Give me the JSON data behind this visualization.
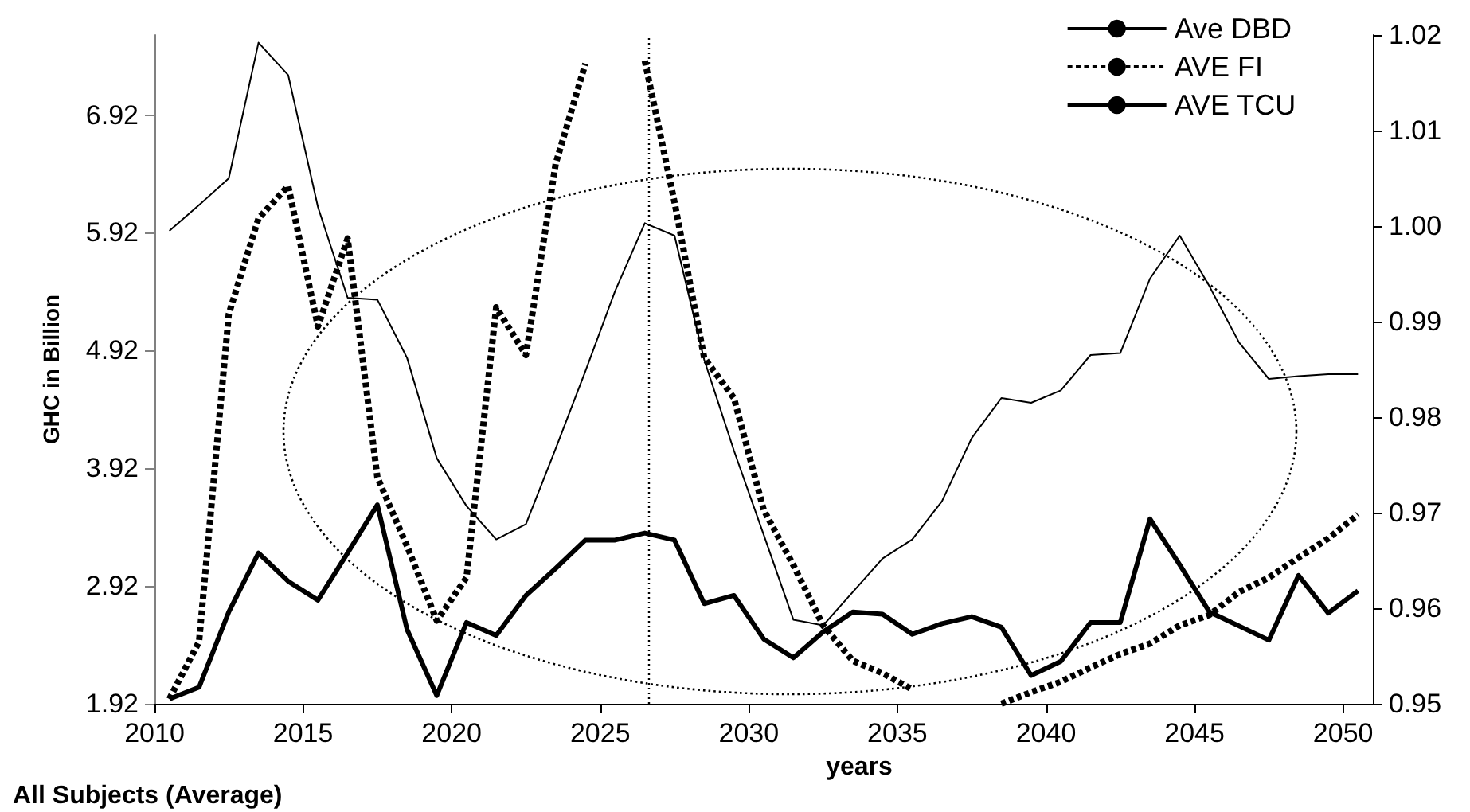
{
  "chart_data": {
    "type": "line",
    "xlabel": "years",
    "ylabel": "GHC in Billion",
    "annotations": [
      "All Subjects (Average)"
    ],
    "x": [
      2010.5,
      2011.5,
      2012.5,
      2013.5,
      2014.5,
      2015.5,
      2016.5,
      2017.5,
      2018.5,
      2019.5,
      2020.5,
      2021.5,
      2022.5,
      2023.5,
      2024.5,
      2025.5,
      2026.5,
      2027.5,
      2028.5,
      2029.5,
      2030.5,
      2031.5,
      2032.5,
      2033.5,
      2034.5,
      2035.5,
      2036.5,
      2037.5,
      2038.5,
      2039.5,
      2040.5,
      2041.5,
      2042.5,
      2043.5,
      2044.5,
      2045.5,
      2046.5,
      2047.5,
      2048.5,
      2049.5,
      2050.5
    ],
    "series": [
      {
        "name": "Ave DBD",
        "color": "#000000",
        "line_style": "solid",
        "values": [
          1.96,
          2.06,
          2.7,
          3.2,
          2.96,
          2.8,
          3.2,
          3.61,
          2.55,
          1.99,
          2.61,
          2.5,
          2.84,
          3.07,
          3.31,
          3.31,
          3.37,
          3.31,
          2.77,
          2.84,
          2.47,
          2.31,
          2.53,
          2.7,
          2.68,
          2.51,
          2.6,
          2.66,
          2.57,
          2.16,
          2.28,
          2.61,
          2.61,
          3.49,
          3.1,
          2.7,
          2.58,
          2.46,
          3.01,
          2.69,
          2.88
        ]
      },
      {
        "name": "AVE FI",
        "color": "#000000",
        "line_style": "dashed",
        "axis": "y2",
        "values": [
          0.9505,
          0.9565,
          0.9908,
          1.0008,
          1.0042,
          0.9895,
          0.9987,
          0.9737,
          0.9665,
          0.9587,
          0.9632,
          0.9915,
          0.9865,
          1.0065,
          1.017,
          null,
          1.0173,
          1.0025,
          0.9862,
          0.982,
          0.9703,
          0.9645,
          0.9582,
          0.9545,
          0.9532,
          0.9515,
          null,
          null,
          0.95,
          0.9512,
          0.9523,
          0.9538,
          0.9552,
          0.9563,
          0.9582,
          0.9593,
          0.9617,
          0.9632,
          0.9653,
          0.9673,
          0.9698
        ]
      },
      {
        "name": "AVE TCU",
        "color": "#000000",
        "line_style": "solid",
        "axis": "y2",
        "values": [
          0.9995,
          1.0022,
          1.005,
          1.0192,
          1.0158,
          1.002,
          0.9925,
          0.9923,
          0.9862,
          0.9757,
          0.9707,
          0.9672,
          0.9688,
          0.9767,
          0.9848,
          0.9932,
          1.0003,
          0.999,
          0.986,
          0.9765,
          0.9677,
          0.9588,
          0.9582,
          0.9617,
          0.9652,
          0.9672,
          0.9712,
          0.9778,
          0.982,
          0.9815,
          0.9828,
          0.9865,
          0.9867,
          0.9945,
          0.999,
          0.9937,
          0.9878,
          0.984,
          0.9843,
          0.9845,
          0.9845
        ]
      }
    ],
    "xlim": [
      2010,
      2051
    ],
    "xticks": [
      2010,
      2015,
      2020,
      2025,
      2030,
      2035,
      2040,
      2045,
      2050
    ],
    "ylim": [
      1.92,
      7.6
    ],
    "yticks": [
      1.92,
      2.92,
      3.92,
      4.92,
      5.92,
      6.92
    ],
    "y2lim": [
      0.95,
      1.02
    ],
    "y2ticks": [
      0.95,
      0.96,
      0.97,
      0.98,
      0.99,
      {
        "value": 1,
        "label": "1.00"
      },
      1.01,
      1.02
    ],
    "ref_lines": [
      {
        "axis": "x",
        "value": 2026.65,
        "color": "#000000",
        "line_style": "dotted"
      }
    ],
    "grid": false,
    "legend": "top right",
    "marker": "none"
  }
}
